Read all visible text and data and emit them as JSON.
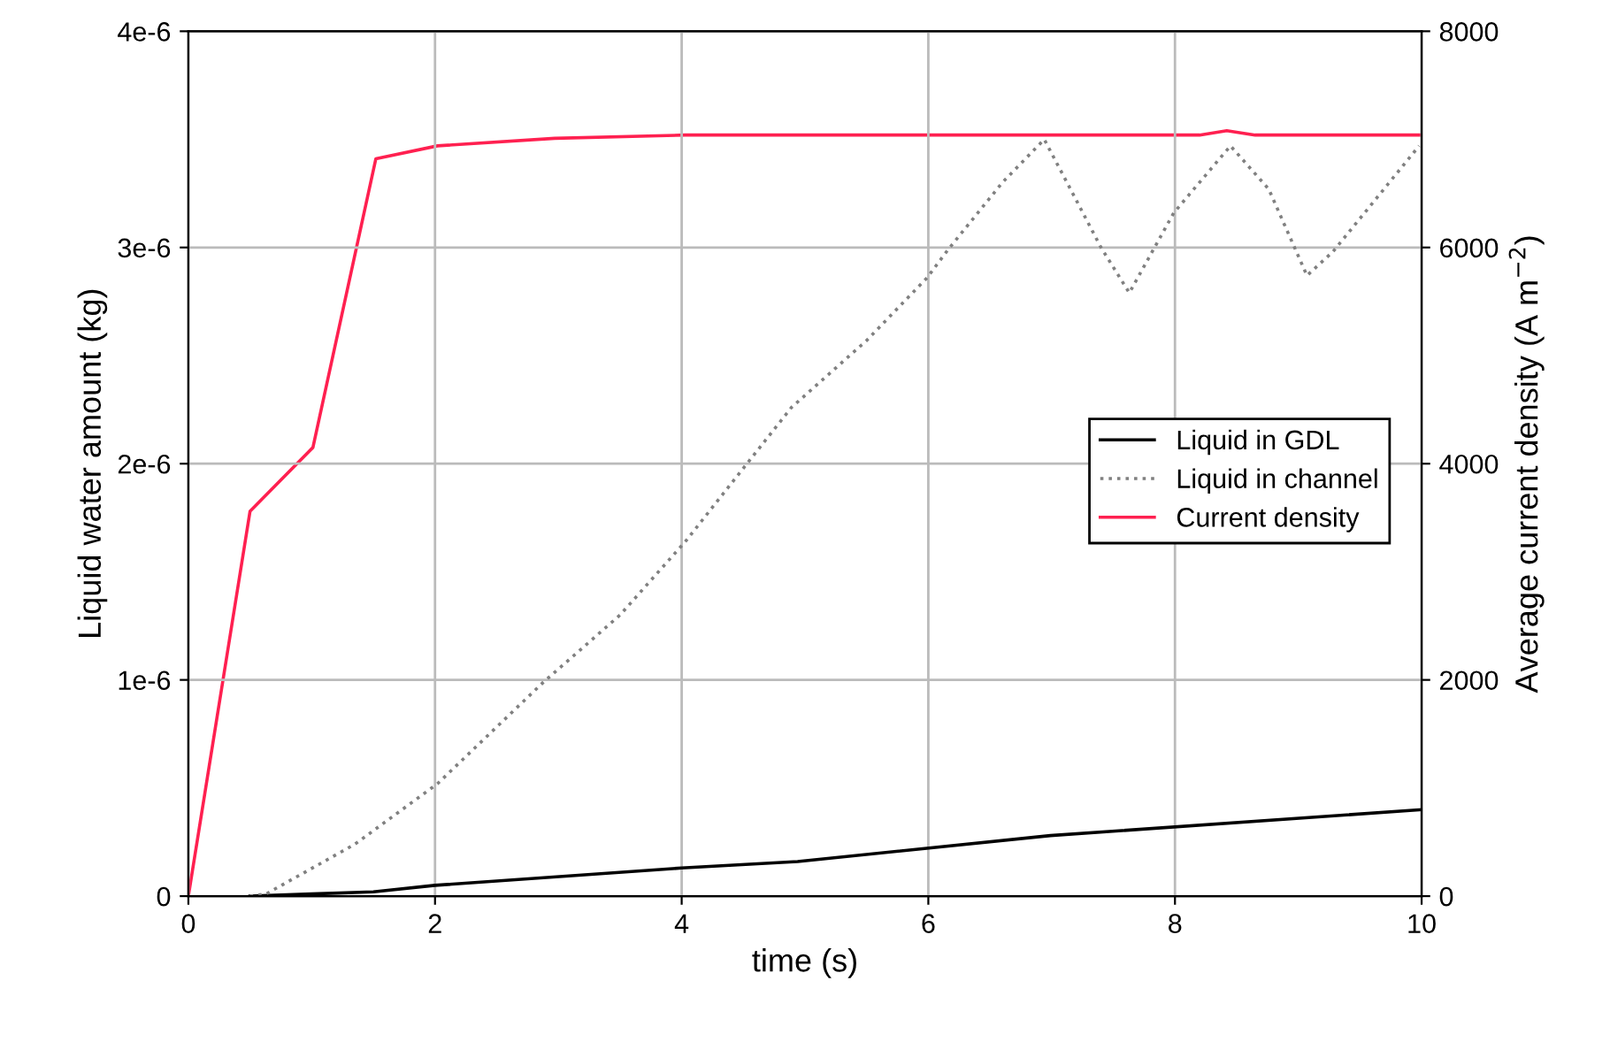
{
  "chart_data": {
    "type": "line",
    "xlabel": "time (s)",
    "ylabel": "Liquid water amount (kg)",
    "y2label": "Average current density (A m$^{−2}$)",
    "xlim": [
      0,
      10
    ],
    "xticks": [
      0,
      2,
      4,
      6,
      8,
      10
    ],
    "ylim": [
      0,
      4e-06
    ],
    "yticks": [
      0,
      {
        "value": 1e-06,
        "label": "1e-6"
      },
      {
        "value": 2e-06,
        "label": "2e-6"
      },
      {
        "value": 3e-06,
        "label": "3e-6"
      },
      {
        "value": 4e-06,
        "label": "4e-6"
      }
    ],
    "y2lim": [
      0,
      8000
    ],
    "y2ticks": [
      0,
      2000,
      4000,
      6000,
      8000
    ],
    "grid": true,
    "legend": "right",
    "series": [
      {
        "name": "Liquid in GDL",
        "color": "#000000",
        "line_style": "solid",
        "x": [
          0.5,
          1.0,
          1.5,
          2.0,
          4.0,
          4.94,
          6.99,
          10.0
        ],
        "values": [
          0,
          1e-08,
          2e-08,
          5e-08,
          1.3e-07,
          1.6e-07,
          2.8e-07,
          4e-07
        ]
      },
      {
        "name": "Liquid in channel",
        "color": "#808080",
        "line_style": "dotted",
        "x": [
          0.5,
          0.63,
          1.35,
          2.02,
          2.88,
          3.5,
          4.03,
          4.89,
          5.5,
          5.99,
          6.16,
          6.6,
          6.94,
          7.18,
          7.4,
          7.63,
          7.99,
          8.45,
          8.76,
          9.07,
          9.28,
          9.98
        ],
        "values": [
          0,
          1e-08,
          2.4e-07,
          5.2e-07,
          9.9e-07,
          1.3e-06,
          1.64e-06,
          2.26e-06,
          2.57e-06,
          2.86e-06,
          2.99e-06,
          3.3e-06,
          3.5e-06,
          3.24e-06,
          3e-06,
          2.79e-06,
          3.16e-06,
          3.47e-06,
          3.27e-06,
          2.87e-06,
          2.98e-06,
          3.47e-06
        ]
      },
      {
        "name": "Current density",
        "color": "#ff2050",
        "line_style": "solid",
        "axis": "y2",
        "x": [
          0,
          0.5,
          1.01,
          1.52,
          2.02,
          2.97,
          4.03,
          8.2,
          8.42,
          8.65,
          10.0
        ],
        "values": [
          0,
          3560,
          4150,
          6820,
          6940,
          7010,
          7040,
          7040,
          7080,
          7040,
          7040
        ]
      }
    ]
  }
}
